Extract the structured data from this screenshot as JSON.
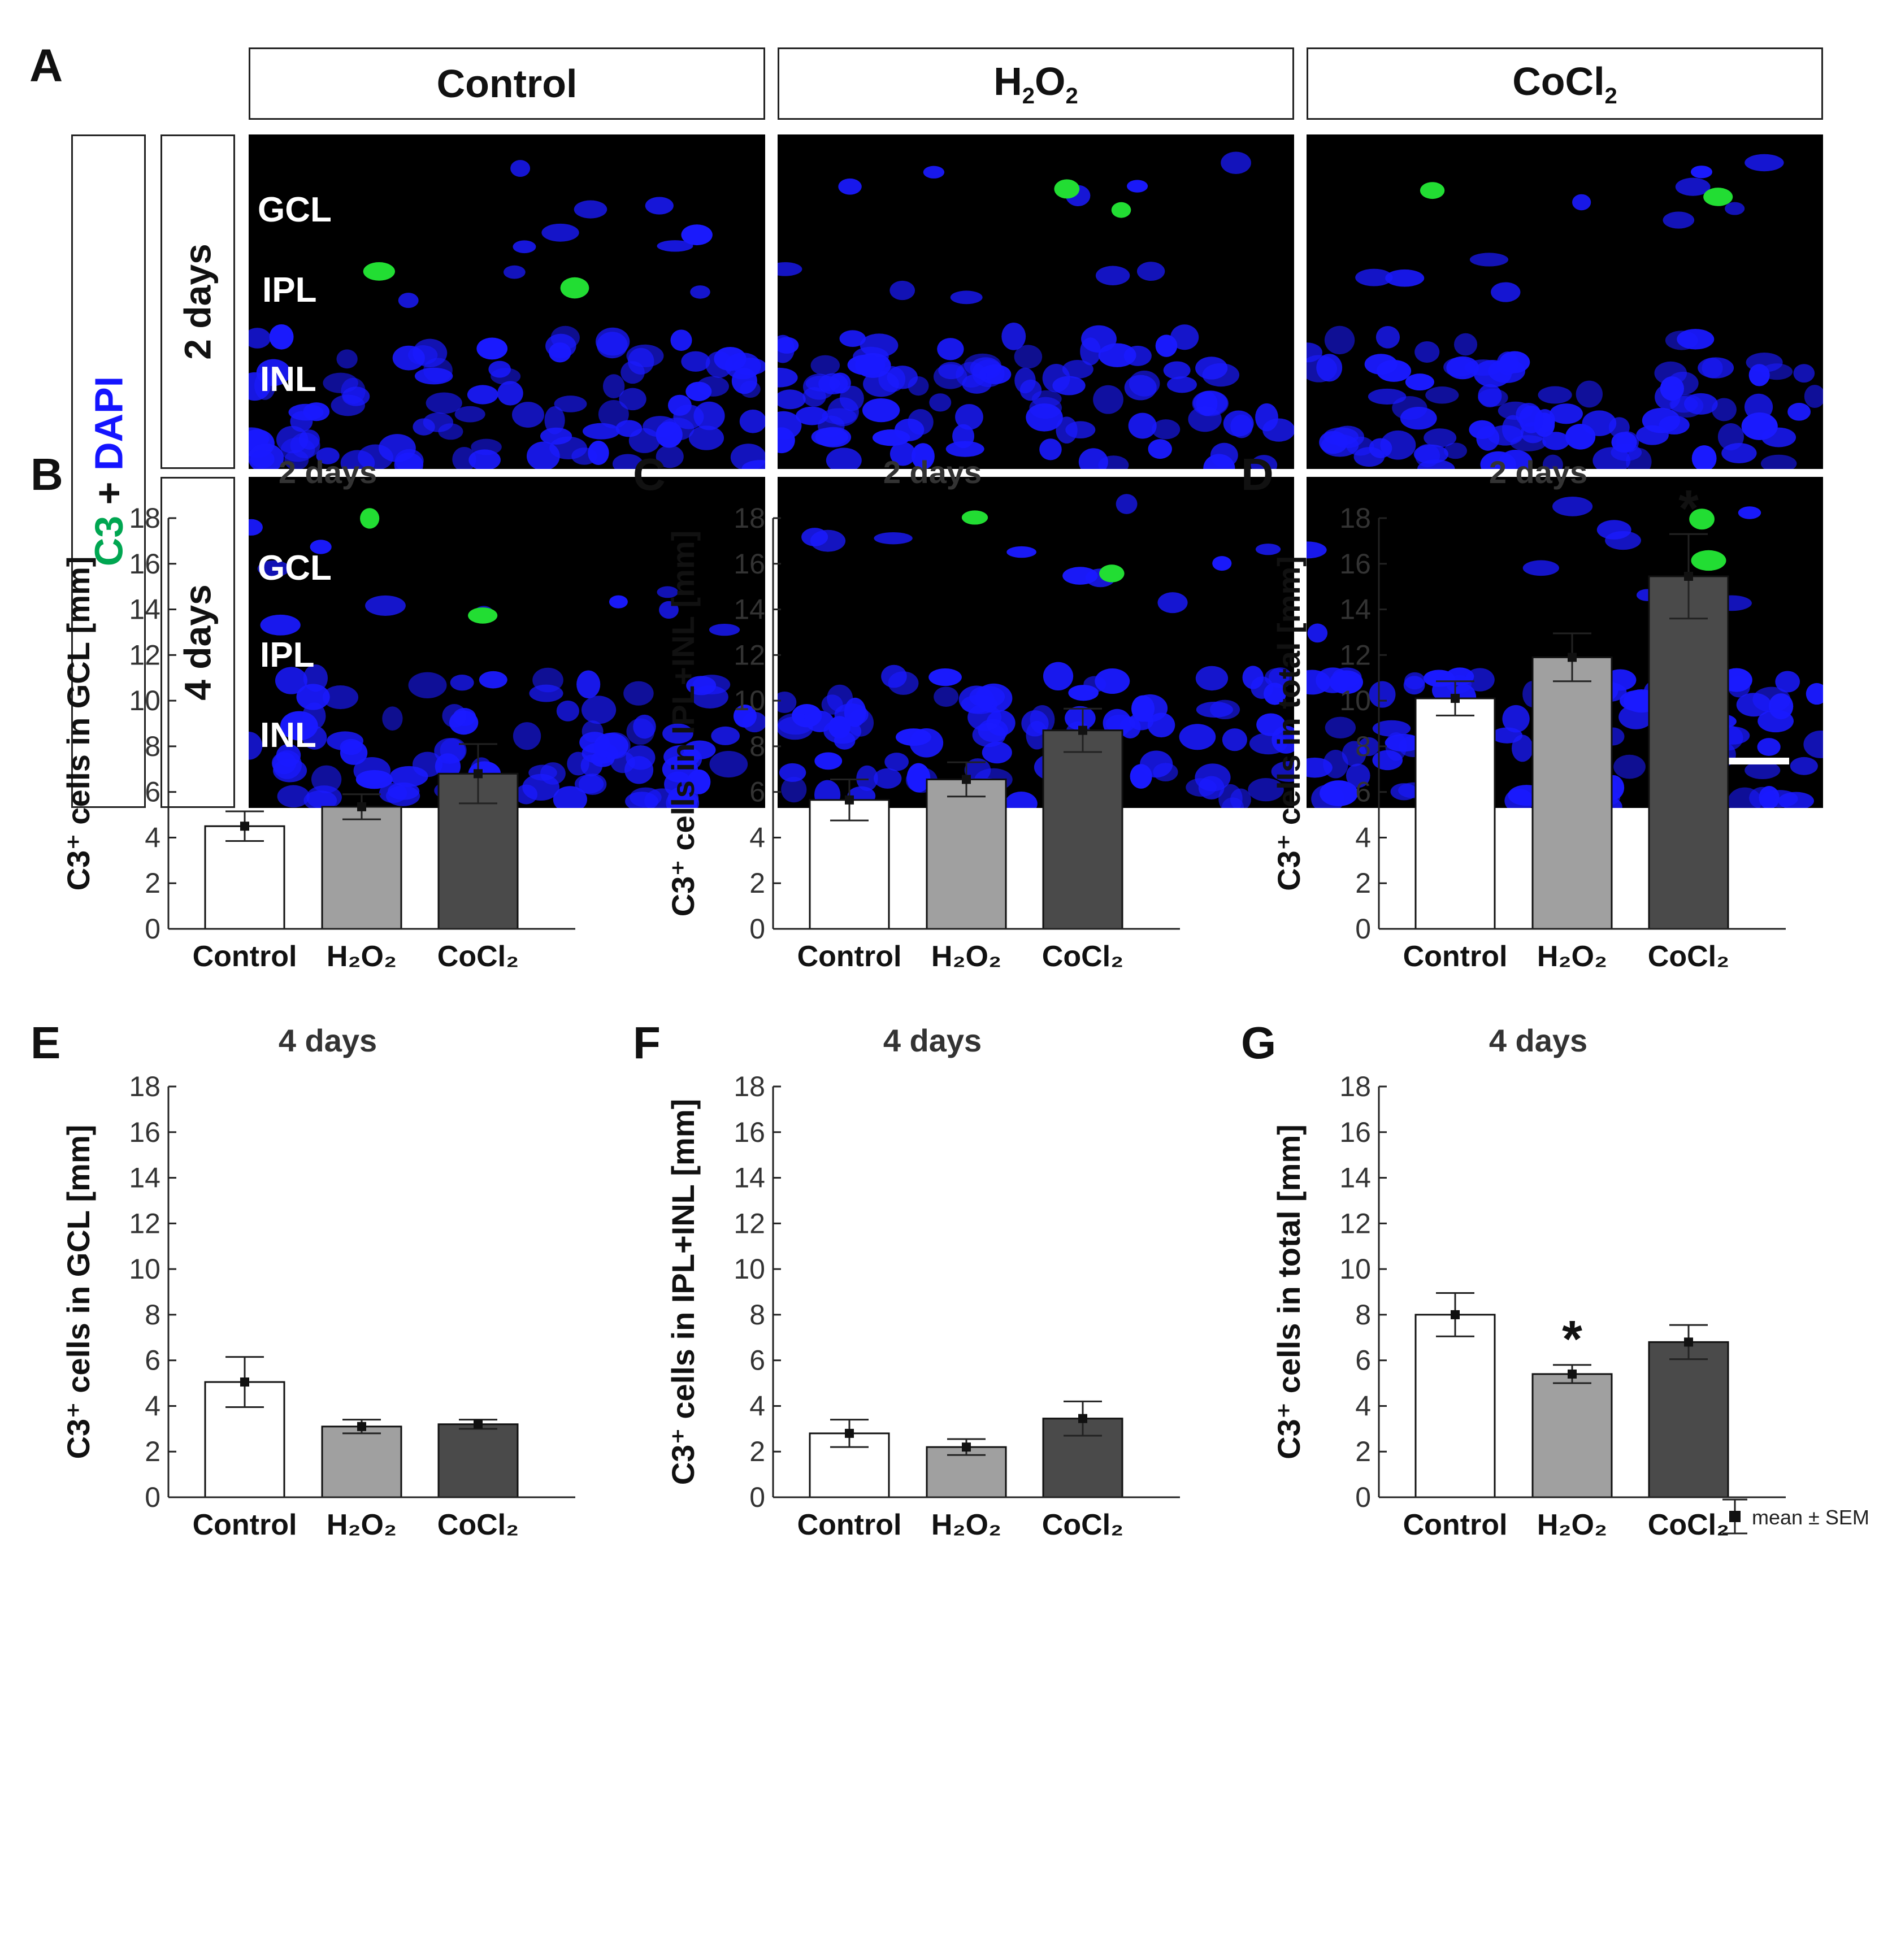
{
  "panel_a": {
    "letter": "A",
    "stain": {
      "marker": "C3",
      "join": " + ",
      "counterstain": "DAPI",
      "marker_color": "#00a651",
      "counterstain_color": "#1414ff"
    },
    "columns": [
      {
        "label": "Control"
      },
      {
        "label": "H",
        "sub1": "2",
        "mid": "O",
        "sub2": "2"
      },
      {
        "label": "CoCl",
        "sub1": "2"
      }
    ],
    "rows": [
      "2 days",
      "4 days"
    ],
    "layers": [
      "GCL",
      "IPL",
      "INL"
    ],
    "nucleus_color": "#1a1aff",
    "c3_color": "#22dd33"
  },
  "legend": {
    "label": "mean ± SEM"
  },
  "chart_data": [
    {
      "panel": "B",
      "type": "bar",
      "title": "2 days",
      "ylabel": "C3⁺ cells in GCL [mm]",
      "ylim": [
        0,
        18
      ],
      "yticks": [
        0,
        2,
        4,
        6,
        8,
        10,
        12,
        14,
        16,
        18
      ],
      "categories": [
        "Control",
        "H₂O₂",
        "CoCl₂"
      ],
      "values": [
        4.5,
        5.35,
        6.8
      ],
      "errors": [
        0.65,
        0.55,
        1.3
      ],
      "significant": [
        false,
        false,
        false
      ]
    },
    {
      "panel": "C",
      "type": "bar",
      "title": "2 days",
      "ylabel": "C3⁺ cells in IPL+INL [mm]",
      "ylim": [
        0,
        18
      ],
      "yticks": [
        0,
        2,
        4,
        6,
        8,
        10,
        12,
        14,
        16,
        18
      ],
      "categories": [
        "Control",
        "H₂O₂",
        "CoCl₂"
      ],
      "values": [
        5.65,
        6.55,
        8.7
      ],
      "errors": [
        0.9,
        0.75,
        0.95
      ],
      "significant": [
        false,
        false,
        false
      ]
    },
    {
      "panel": "D",
      "type": "bar",
      "title": "2 days",
      "ylabel": "C3⁺ cells in total [mm]",
      "ylim": [
        0,
        18
      ],
      "yticks": [
        0,
        2,
        4,
        6,
        8,
        10,
        12,
        14,
        16,
        18
      ],
      "categories": [
        "Control",
        "H₂O₂",
        "CoCl₂"
      ],
      "values": [
        10.1,
        11.9,
        15.45
      ],
      "errors": [
        0.75,
        1.05,
        1.85
      ],
      "significant": [
        false,
        false,
        true
      ]
    },
    {
      "panel": "E",
      "type": "bar",
      "title": "4 days",
      "ylabel": "C3⁺ cells in GCL [mm]",
      "ylim": [
        0,
        18
      ],
      "yticks": [
        0,
        2,
        4,
        6,
        8,
        10,
        12,
        14,
        16,
        18
      ],
      "categories": [
        "Control",
        "H₂O₂",
        "CoCl₂"
      ],
      "values": [
        5.05,
        3.1,
        3.2
      ],
      "errors": [
        1.1,
        0.3,
        0.2
      ],
      "significant": [
        false,
        false,
        false
      ]
    },
    {
      "panel": "F",
      "type": "bar",
      "title": "4 days",
      "ylabel": "C3⁺ cells in IPL+INL [mm]",
      "ylim": [
        0,
        18
      ],
      "yticks": [
        0,
        2,
        4,
        6,
        8,
        10,
        12,
        14,
        16,
        18
      ],
      "categories": [
        "Control",
        "H₂O₂",
        "CoCl₂"
      ],
      "values": [
        2.8,
        2.2,
        3.45
      ],
      "errors": [
        0.6,
        0.35,
        0.75
      ],
      "significant": [
        false,
        false,
        false
      ]
    },
    {
      "panel": "G",
      "type": "bar",
      "title": "4 days",
      "ylabel": "C3⁺ cells in total [mm]",
      "ylim": [
        0,
        18
      ],
      "yticks": [
        0,
        2,
        4,
        6,
        8,
        10,
        12,
        14,
        16,
        18
      ],
      "categories": [
        "Control",
        "H₂O₂",
        "CoCl₂"
      ],
      "values": [
        8.0,
        5.4,
        6.8
      ],
      "errors": [
        0.95,
        0.4,
        0.75
      ],
      "significant": [
        false,
        true,
        false
      ]
    }
  ],
  "bar_colors": [
    "#ffffff",
    "#a0a0a0",
    "#4a4a4a"
  ],
  "significance_marker": "*"
}
